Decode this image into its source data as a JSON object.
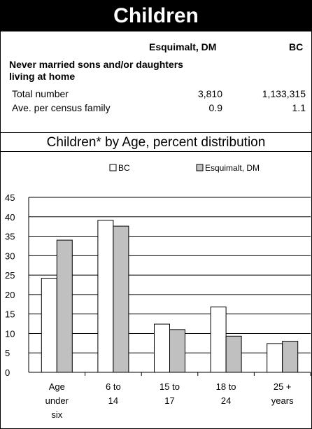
{
  "header": {
    "title": "Children"
  },
  "table": {
    "col1": "Esquimalt, DM",
    "col2": "BC",
    "section": "Never married sons and/or daughters living at home",
    "rows": [
      {
        "label": "Total number",
        "v1": "3,810",
        "v2": "1,133,315"
      },
      {
        "label": "Ave. per census family",
        "v1": "0.9",
        "v2": "1.1"
      }
    ]
  },
  "chart_data": {
    "type": "bar",
    "title": "Children* by Age, percent distribution",
    "categories": [
      "Age under six",
      "6 to 14",
      "15 to 17",
      "18 to 24",
      "25 + years"
    ],
    "category_lines": [
      [
        "Age",
        "under",
        "six"
      ],
      [
        "6 to",
        "14"
      ],
      [
        "15 to",
        "17"
      ],
      [
        "18 to",
        "24"
      ],
      [
        "25 +",
        "years"
      ]
    ],
    "series": [
      {
        "name": "BC",
        "color": "#ffffff",
        "values": [
          24.2,
          39.1,
          12.4,
          16.8,
          7.4
        ]
      },
      {
        "name": "Esquimalt, DM",
        "color": "#c0c0c0",
        "values": [
          34.0,
          37.6,
          11.0,
          9.3,
          8.0
        ]
      }
    ],
    "ylim": [
      0,
      45
    ],
    "yticks": [
      0,
      5,
      10,
      15,
      20,
      25,
      30,
      35,
      40,
      45
    ],
    "grid": true,
    "legend": "top"
  }
}
